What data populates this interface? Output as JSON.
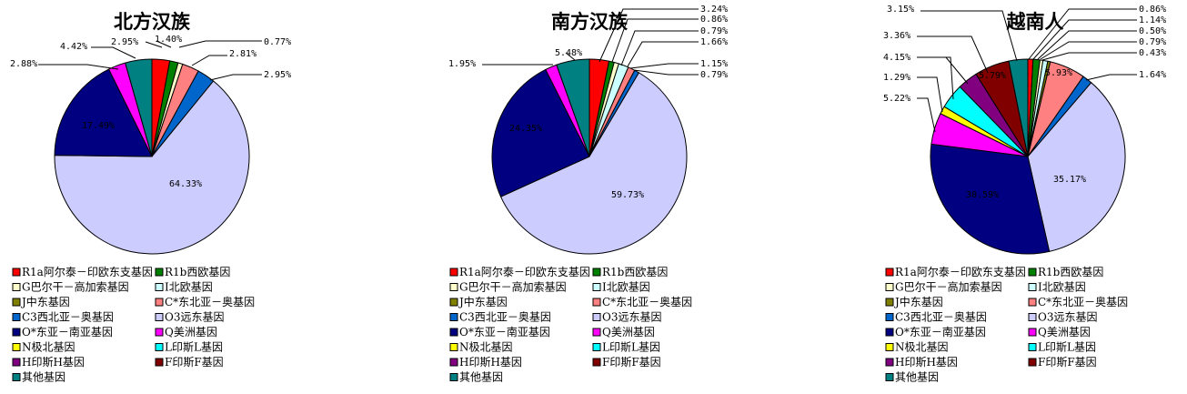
{
  "categories": [
    "R1a阿尔泰－印欧东支基因",
    "R1b西欧基因",
    "G巴尔干－高加索基因",
    "I北欧基因",
    "J中东基因",
    "C*东北亚－奥基因",
    "C3西北亚－奥基因",
    "O3远东基因",
    "O*东亚－南亚基因",
    "Q美洲基因",
    "N极北基因",
    "L印斯L基因",
    "H印斯H基因",
    "F印斯F基因",
    "其他基因"
  ],
  "colors": [
    "#ff0000",
    "#008000",
    "#ffffcc",
    "#ccffff",
    "#808000",
    "#ff8080",
    "#0066cc",
    "#ccccff",
    "#000080",
    "#ff00ff",
    "#ffff00",
    "#00ffff",
    "#800080",
    "#800000",
    "#008080"
  ],
  "chart_data": [
    {
      "type": "pie",
      "title": "北方汉族",
      "categories": [
        "R1a阿尔泰－印欧东支基因",
        "R1b西欧基因",
        "G巴尔干－高加索基因",
        "I北欧基因",
        "J中东基因",
        "C*东北亚－奥基因",
        "C3西北亚－奥基因",
        "O3远东基因",
        "O*东亚－南亚基因",
        "Q美洲基因",
        "N极北基因",
        "L印斯L基因",
        "H印斯H基因",
        "F印斯F基因",
        "其他基因"
      ],
      "values": [
        2.95,
        1.4,
        0.77,
        0,
        0,
        2.81,
        2.95,
        64.33,
        17.49,
        2.88,
        0,
        0,
        0,
        0,
        4.42
      ],
      "labels": [
        "2.95%",
        "1.40%",
        "0.77%",
        "",
        "",
        "2.81%",
        "2.95%",
        "64.33%",
        "17.49%",
        "2.88%",
        "",
        "",
        "",
        "",
        "4.42%"
      ]
    },
    {
      "type": "pie",
      "title": "南方汉族",
      "categories": [
        "R1a阿尔泰－印欧东支基因",
        "R1b西欧基因",
        "G巴尔干－高加索基因",
        "I北欧基因",
        "J中东基因",
        "C*东北亚－奥基因",
        "C3西北亚－奥基因",
        "O3远东基因",
        "O*东亚－南亚基因",
        "Q美洲基因",
        "N极北基因",
        "L印斯L基因",
        "H印斯H基因",
        "F印斯F基因",
        "其他基因"
      ],
      "values": [
        3.24,
        0.86,
        0.79,
        1.66,
        0,
        1.15,
        0.79,
        59.73,
        24.35,
        1.95,
        0,
        0,
        0,
        0,
        5.48
      ],
      "labels": [
        "3.24%",
        "0.86%",
        "0.79%",
        "1.66%",
        "",
        "1.15%",
        "0.79%",
        "59.73%",
        "24.35%",
        "1.95%",
        "",
        "",
        "",
        "",
        "5.48%"
      ]
    },
    {
      "type": "pie",
      "title": "越南人",
      "categories": [
        "R1a阿尔泰－印欧东支基因",
        "R1b西欧基因",
        "G巴尔干－高加索基因",
        "I北欧基因",
        "J中东基因",
        "C*东北亚－奥基因",
        "C3西北亚－奥基因",
        "O3远东基因",
        "O*东亚－南亚基因",
        "Q美洲基因",
        "N极北基因",
        "L印斯L基因",
        "H印斯H基因",
        "F印斯F基因",
        "其他基因"
      ],
      "values": [
        0.86,
        1.14,
        0.5,
        0.79,
        0.43,
        5.93,
        1.64,
        35.17,
        30.59,
        5.22,
        1.29,
        4.15,
        3.36,
        5.79,
        3.15
      ],
      "labels": [
        "0.86%",
        "1.14%",
        "0.50%",
        "0.79%",
        "0.43%",
        "5.93%",
        "1.64%",
        "35.17%",
        "30.59%",
        "5.22%",
        "1.29%",
        "4.15%",
        "3.36%",
        "5.79%",
        "3.15%"
      ]
    }
  ]
}
